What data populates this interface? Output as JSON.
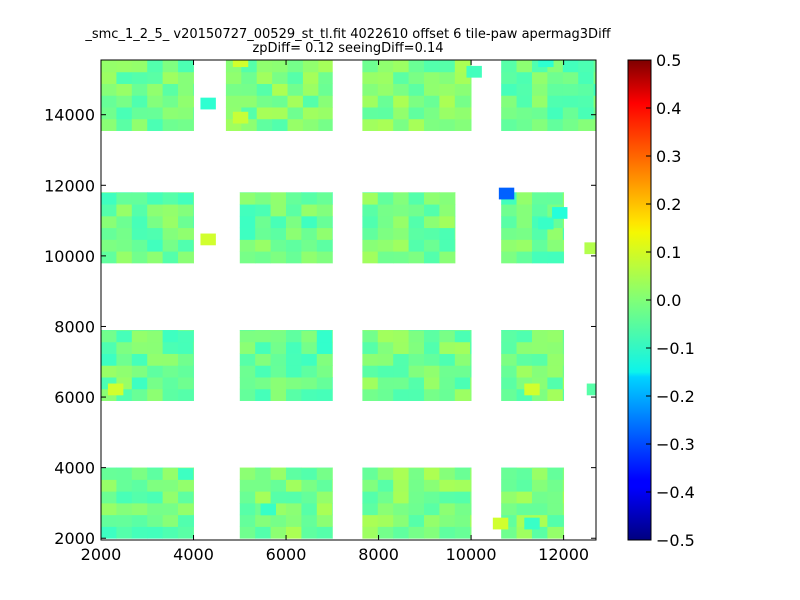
{
  "chart_data": {
    "type": "heatmap",
    "title": {
      "line1": "_smc_1_2_5_ v20150727_00529_st_tl.fit 4022610 offset 6 tile-paw apermag3Diff",
      "line2": "zpDiff= 0.12 seeingDiff=0.14"
    },
    "xlabel": "",
    "ylabel": "",
    "xlim": [
      2000,
      12700
    ],
    "ylim": [
      1950,
      15550
    ],
    "x_ticks": [
      2000,
      4000,
      6000,
      8000,
      10000,
      12000
    ],
    "x_tick_labels": [
      "2000",
      "4000",
      "6000",
      "8000",
      "10000",
      "12000"
    ],
    "y_ticks": [
      2000,
      4000,
      6000,
      8000,
      10000,
      12000,
      14000
    ],
    "y_tick_labels": [
      "2000",
      "4000",
      "6000",
      "8000",
      "10000",
      "12000",
      "14000"
    ],
    "cell_size": 333,
    "colorbar": {
      "colormap": "jet",
      "range": [
        -0.5,
        0.5
      ],
      "ticks": [
        0.5,
        0.4,
        0.3,
        0.2,
        0.1,
        0.0,
        -0.1,
        -0.2,
        -0.3,
        -0.4,
        -0.5
      ],
      "tick_labels": [
        "0.5",
        "0.4",
        "0.3",
        "0.2",
        "0.1",
        "0.0",
        "−0.1",
        "−0.2",
        "−0.3",
        "−0.4",
        "−0.5"
      ]
    },
    "blocks": [
      {
        "x": [
          2000,
          4000
        ],
        "y": [
          2000,
          4000
        ],
        "value": -0.02
      },
      {
        "x": [
          2000,
          4000
        ],
        "y": [
          5900,
          7900
        ],
        "value": -0.02
      },
      {
        "x": [
          2000,
          4000
        ],
        "y": [
          9800,
          11800
        ],
        "value": -0.02
      },
      {
        "x": [
          2000,
          4000
        ],
        "y": [
          13550,
          15550
        ],
        "value": -0.01
      },
      {
        "x": [
          5000,
          7000
        ],
        "y": [
          2000,
          4000
        ],
        "value": 0.0
      },
      {
        "x": [
          5000,
          7000
        ],
        "y": [
          5900,
          7900
        ],
        "value": -0.03
      },
      {
        "x": [
          5000,
          7000
        ],
        "y": [
          9800,
          11800
        ],
        "value": -0.02
      },
      {
        "x": [
          4700,
          7000
        ],
        "y": [
          13550,
          15550
        ],
        "value": 0.0
      },
      {
        "x": [
          7650,
          10000
        ],
        "y": [
          2000,
          4000
        ],
        "value": 0.0
      },
      {
        "x": [
          7650,
          10000
        ],
        "y": [
          5900,
          7900
        ],
        "value": -0.01
      },
      {
        "x": [
          7650,
          9650
        ],
        "y": [
          9800,
          11800
        ],
        "value": -0.01
      },
      {
        "x": [
          7650,
          10000
        ],
        "y": [
          13550,
          15550
        ],
        "value": 0.0
      },
      {
        "x": [
          10650,
          12000
        ],
        "y": [
          2000,
          4000
        ],
        "value": 0.0
      },
      {
        "x": [
          10650,
          12000
        ],
        "y": [
          5900,
          7900
        ],
        "value": -0.01
      },
      {
        "x": [
          10650,
          12000
        ],
        "y": [
          9800,
          11800
        ],
        "value": -0.02
      },
      {
        "x": [
          10650,
          12700
        ],
        "y": [
          13550,
          15550
        ],
        "value": -0.02
      }
    ],
    "cells": [
      {
        "x": 10600,
        "y": 11600,
        "value": -0.28
      },
      {
        "x": 4150,
        "y": 14150,
        "value": -0.08
      },
      {
        "x": 4150,
        "y": 10300,
        "value": 0.08
      },
      {
        "x": 11150,
        "y": 6050,
        "value": 0.08
      },
      {
        "x": 10470,
        "y": 2250,
        "value": 0.08
      },
      {
        "x": 2150,
        "y": 6050,
        "value": 0.08
      },
      {
        "x": 11750,
        "y": 11050,
        "value": -0.09
      },
      {
        "x": 11450,
        "y": 10750,
        "value": -0.07
      },
      {
        "x": 5450,
        "y": 2650,
        "value": -0.07
      },
      {
        "x": 11450,
        "y": 15350,
        "value": -0.08
      },
      {
        "x": 11150,
        "y": 2250,
        "value": -0.07
      },
      {
        "x": 9900,
        "y": 15050,
        "value": -0.06
      },
      {
        "x": 4850,
        "y": 15350,
        "value": 0.08
      },
      {
        "x": 4850,
        "y": 13750,
        "value": 0.07
      },
      {
        "x": 12450,
        "y": 10050,
        "value": 0.05
      },
      {
        "x": 12500,
        "y": 6050,
        "value": -0.04
      }
    ]
  }
}
